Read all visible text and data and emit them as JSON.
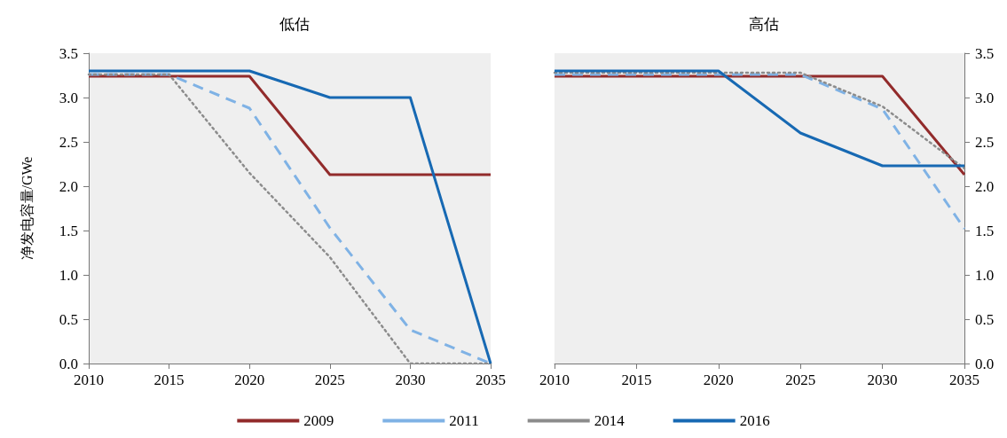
{
  "chart_data": [
    {
      "type": "line",
      "title": "低估",
      "ylabel": "净发电容量/GWe",
      "x": [
        2010,
        2015,
        2020,
        2025,
        2030,
        2035
      ],
      "xlim": [
        2010,
        2035
      ],
      "xticks": [
        2010,
        2015,
        2020,
        2025,
        2030,
        2035
      ],
      "ylim": [
        0,
        3.5
      ],
      "yticks": [
        {
          "value": 0,
          "label": "0.0"
        },
        {
          "value": 0.5,
          "label": "0.5"
        },
        {
          "value": 1,
          "label": "1.0"
        },
        {
          "value": 1.5,
          "label": "1.5"
        },
        {
          "value": 2,
          "label": "2.0"
        },
        {
          "value": 2.5,
          "label": "2.5"
        },
        {
          "value": 3,
          "label": "3.0"
        },
        {
          "value": 3.5,
          "label": "3.5"
        }
      ],
      "grid": false,
      "legend": "bottom",
      "marker": "none",
      "series": [
        {
          "name": "2009",
          "color": "#922b2b",
          "line_style": "solid",
          "values": [
            3.24,
            3.24,
            3.24,
            2.13,
            2.13,
            2.13
          ]
        },
        {
          "name": "2011",
          "color": "#7fb2e5",
          "line_style": "dashed",
          "values": [
            3.26,
            3.26,
            2.88,
            1.53,
            0.38,
            0
          ]
        },
        {
          "name": "2014",
          "color": "#8c8c8c",
          "line_style": "dotted",
          "values": [
            3.26,
            3.26,
            2.15,
            1.2,
            0,
            0
          ]
        },
        {
          "name": "2016",
          "color": "#1769b3",
          "line_style": "solid",
          "values": [
            3.3,
            3.3,
            3.3,
            3.0,
            3.0,
            0
          ]
        }
      ]
    },
    {
      "type": "line",
      "title": "高估",
      "x": [
        2010,
        2015,
        2020,
        2025,
        2030,
        2035
      ],
      "xlim": [
        2010,
        2035
      ],
      "xticks": [
        2010,
        2015,
        2020,
        2025,
        2030,
        2035
      ],
      "ylim": [
        0,
        3.5
      ],
      "yticks": [
        {
          "value": 0,
          "label": "0.0"
        },
        {
          "value": 0.5,
          "label": "0.5"
        },
        {
          "value": 1,
          "label": "1.0"
        },
        {
          "value": 1.5,
          "label": "1.5"
        },
        {
          "value": 2,
          "label": "2.0"
        },
        {
          "value": 2.5,
          "label": "2.5"
        },
        {
          "value": 3,
          "label": "3.0"
        },
        {
          "value": 3.5,
          "label": "3.5"
        }
      ],
      "grid": false,
      "marker": "none",
      "series": [
        {
          "color": "#922b2b",
          "line_style": "solid",
          "values": [
            3.24,
            3.24,
            3.24,
            3.24,
            3.24,
            2.13
          ]
        },
        {
          "color": "#7fb2e5",
          "line_style": "dashed",
          "values": [
            3.26,
            3.26,
            3.26,
            3.26,
            2.87,
            1.52
          ]
        },
        {
          "color": "#8c8c8c",
          "line_style": "dotted",
          "values": [
            3.28,
            3.28,
            3.28,
            3.28,
            2.9,
            2.2
          ]
        },
        {
          "color": "#1769b3",
          "line_style": "solid",
          "values": [
            3.3,
            3.3,
            3.3,
            2.6,
            2.23,
            2.23
          ]
        }
      ]
    }
  ]
}
